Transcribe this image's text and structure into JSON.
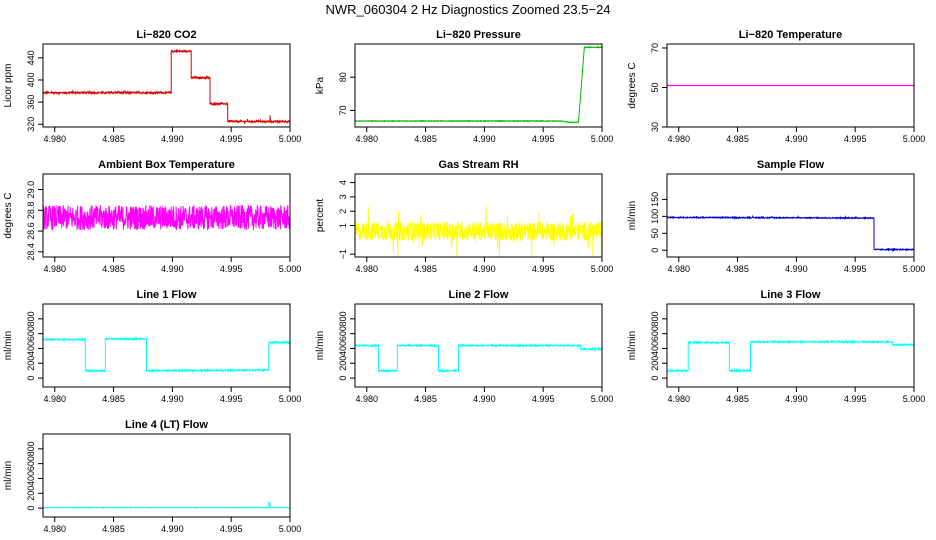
{
  "figure": {
    "title": "NWR_060304  2 Hz Diagnostics Zoomed 23.5−24"
  },
  "chart_data": [
    {
      "type": "line",
      "title": "Li−820 CO2",
      "ylabel": "Licor ppm",
      "xlabel": "",
      "xlim": [
        4.979,
        5.0
      ],
      "ylim": [
        315,
        465
      ],
      "xticks": [
        "4.980",
        "4.985",
        "4.990",
        "4.995",
        "5.000"
      ],
      "xtick_values": [
        4.98,
        4.985,
        4.99,
        4.995,
        5.0
      ],
      "yticks": [
        "320",
        "360",
        "400",
        "440"
      ],
      "ytick_values": [
        320,
        360,
        400,
        440
      ],
      "color": "#dd0000",
      "noise": 1.5,
      "series": [
        {
          "x": [
            4.979,
            4.9899,
            4.9899,
            4.9916,
            4.9916,
            4.9932,
            4.9932,
            4.9947,
            4.9947,
            4.9983,
            4.9983,
            4.9984,
            4.9984,
            5.0
          ],
          "y": [
            377,
            377,
            452,
            452,
            404,
            404,
            357,
            357,
            325,
            325,
            336,
            322,
            325,
            325
          ]
        }
      ]
    },
    {
      "type": "line",
      "title": "Li−820 Pressure",
      "ylabel": "kPa",
      "xlabel": "",
      "xlim": [
        4.979,
        5.0
      ],
      "ylim": [
        65,
        90
      ],
      "xticks": [
        "4.980",
        "4.985",
        "4.990",
        "4.995",
        "5.000"
      ],
      "xtick_values": [
        4.98,
        4.985,
        4.99,
        4.995,
        5.0
      ],
      "yticks": [
        "70",
        "80"
      ],
      "ytick_values": [
        70,
        80
      ],
      "color": "#00bb00",
      "noise": 0.1,
      "series": [
        {
          "x": [
            4.979,
            4.9965,
            4.9972,
            4.998,
            4.9983,
            4.9985,
            5.0
          ],
          "y": [
            66.8,
            66.8,
            66.4,
            66.4,
            80,
            89,
            89
          ]
        }
      ]
    },
    {
      "type": "line",
      "title": "Li−820 Temperature",
      "ylabel": "degrees C",
      "xlabel": "",
      "xlim": [
        4.979,
        5.0
      ],
      "ylim": [
        30,
        72
      ],
      "xticks": [
        "4.980",
        "4.985",
        "4.990",
        "4.995",
        "5.000"
      ],
      "xtick_values": [
        4.98,
        4.985,
        4.99,
        4.995,
        5.0
      ],
      "yticks": [
        "30",
        "50",
        "70"
      ],
      "ytick_values": [
        30,
        50,
        70
      ],
      "color": "#ff00ff",
      "noise": 0,
      "series": [
        {
          "x": [
            4.979,
            5.0
          ],
          "y": [
            51,
            51
          ]
        }
      ]
    },
    {
      "type": "line",
      "title": "Ambient Box Temperature",
      "ylabel": "degrees C",
      "xlabel": "",
      "xlim": [
        4.979,
        5.0
      ],
      "ylim": [
        28.35,
        29.15
      ],
      "xticks": [
        "4.980",
        "4.985",
        "4.990",
        "4.995",
        "5.000"
      ],
      "xtick_values": [
        4.98,
        4.985,
        4.99,
        4.995,
        5.0
      ],
      "yticks": [
        "28.4",
        "28.6",
        "28.8",
        "29.0"
      ],
      "ytick_values": [
        28.4,
        28.6,
        28.8,
        29.0
      ],
      "color": "#ff00ff",
      "noise": 0.12,
      "series": [
        {
          "x": [
            4.979,
            5.0
          ],
          "y": [
            28.73,
            28.73
          ]
        }
      ]
    },
    {
      "type": "line",
      "title": "Gas Stream RH",
      "ylabel": "percent",
      "xlabel": "",
      "xlim": [
        4.979,
        5.0
      ],
      "ylim": [
        -1.2,
        4.6
      ],
      "xticks": [
        "4.980",
        "4.985",
        "4.990",
        "4.995",
        "5.000"
      ],
      "xtick_values": [
        4.98,
        4.985,
        4.99,
        4.995,
        5.0
      ],
      "yticks": [
        "−1",
        "1",
        "2",
        "3",
        "4"
      ],
      "ytick_values": [
        -1,
        1,
        2,
        3,
        4
      ],
      "color": "#ffff00",
      "noise": 0.65,
      "series": [
        {
          "x": [
            4.979,
            5.0
          ],
          "y": [
            0.6,
            0.6
          ]
        }
      ]
    },
    {
      "type": "line",
      "title": "Sample Flow",
      "ylabel": "ml/min",
      "xlabel": "",
      "xlim": [
        4.979,
        5.0
      ],
      "ylim": [
        -20,
        225
      ],
      "xticks": [
        "4.980",
        "4.985",
        "4.990",
        "4.995",
        "5.000"
      ],
      "xtick_values": [
        4.98,
        4.985,
        4.99,
        4.995,
        5.0
      ],
      "yticks": [
        "0",
        "50",
        "100",
        "150"
      ],
      "ytick_values": [
        0,
        50,
        100,
        150
      ],
      "color": "#0000cc",
      "noise": 1.5,
      "series": [
        {
          "x": [
            4.979,
            4.9966,
            4.9966,
            5.0
          ],
          "y": [
            97,
            95,
            2,
            2
          ]
        }
      ]
    },
    {
      "type": "line",
      "title": "Line 1 Flow",
      "ylabel": "ml/min",
      "xlabel": "",
      "xlim": [
        4.979,
        5.0
      ],
      "ylim": [
        -120,
        1000
      ],
      "xticks": [
        "4.980",
        "4.985",
        "4.990",
        "4.995",
        "5.000"
      ],
      "xtick_values": [
        4.98,
        4.985,
        4.99,
        4.995,
        5.0
      ],
      "yticks": [
        "0",
        "200",
        "400",
        "600",
        "800"
      ],
      "ytick_values": [
        0,
        200,
        400,
        600,
        800
      ],
      "color": "#00ffff",
      "noise": 8,
      "series": [
        {
          "x": [
            4.979,
            4.979,
            4.9826,
            4.9826,
            4.9843,
            4.9843,
            4.9878,
            4.9878,
            4.9982,
            4.9982,
            5.0
          ],
          "y": [
            100,
            520,
            520,
            100,
            100,
            530,
            530,
            100,
            110,
            480,
            480
          ]
        }
      ]
    },
    {
      "type": "line",
      "title": "Line 2 Flow",
      "ylabel": "ml/min",
      "xlabel": "",
      "xlim": [
        4.979,
        5.0
      ],
      "ylim": [
        -120,
        1000
      ],
      "xticks": [
        "4.980",
        "4.985",
        "4.990",
        "4.995",
        "5.000"
      ],
      "xtick_values": [
        4.98,
        4.985,
        4.99,
        4.995,
        5.0
      ],
      "yticks": [
        "0",
        "200",
        "400",
        "600",
        "800"
      ],
      "ytick_values": [
        0,
        200,
        400,
        600,
        800
      ],
      "color": "#00ffff",
      "noise": 8,
      "series": [
        {
          "x": [
            4.979,
            4.981,
            4.981,
            4.9826,
            4.9826,
            4.9861,
            4.9861,
            4.9878,
            4.9878,
            4.9982,
            4.9982,
            5.0
          ],
          "y": [
            440,
            440,
            100,
            100,
            440,
            440,
            100,
            100,
            440,
            440,
            390,
            390
          ]
        }
      ]
    },
    {
      "type": "line",
      "title": "Line 3 Flow",
      "ylabel": "ml/min",
      "xlabel": "",
      "xlim": [
        4.979,
        5.0
      ],
      "ylim": [
        -120,
        1000
      ],
      "xticks": [
        "4.980",
        "4.985",
        "4.990",
        "4.995",
        "5.000"
      ],
      "xtick_values": [
        4.98,
        4.985,
        4.99,
        4.995,
        5.0
      ],
      "yticks": [
        "0",
        "200",
        "400",
        "600",
        "800"
      ],
      "ytick_values": [
        0,
        200,
        400,
        600,
        800
      ],
      "color": "#00ffff",
      "noise": 8,
      "series": [
        {
          "x": [
            4.979,
            4.979,
            4.9808,
            4.9808,
            4.9843,
            4.9843,
            4.9861,
            4.9861,
            4.9982,
            4.9982,
            5.0
          ],
          "y": [
            480,
            100,
            100,
            480,
            480,
            100,
            100,
            490,
            490,
            450,
            450
          ]
        }
      ]
    },
    {
      "type": "line",
      "title": "Line 4 (LT) Flow",
      "ylabel": "ml/min",
      "xlabel": "",
      "xlim": [
        4.979,
        5.0
      ],
      "ylim": [
        -120,
        1000
      ],
      "xticks": [
        "4.980",
        "4.985",
        "4.990",
        "4.995",
        "5.000"
      ],
      "xtick_values": [
        4.98,
        4.985,
        4.99,
        4.995,
        5.0
      ],
      "yticks": [
        "0",
        "200",
        "400",
        "600",
        "800"
      ],
      "ytick_values": [
        0,
        200,
        400,
        600,
        800
      ],
      "color": "#00ffff",
      "noise": 2,
      "series": [
        {
          "x": [
            4.979,
            4.9982,
            4.9982,
            4.9983,
            4.9983,
            5.0
          ],
          "y": [
            5,
            5,
            70,
            70,
            5,
            5
          ]
        }
      ]
    }
  ]
}
